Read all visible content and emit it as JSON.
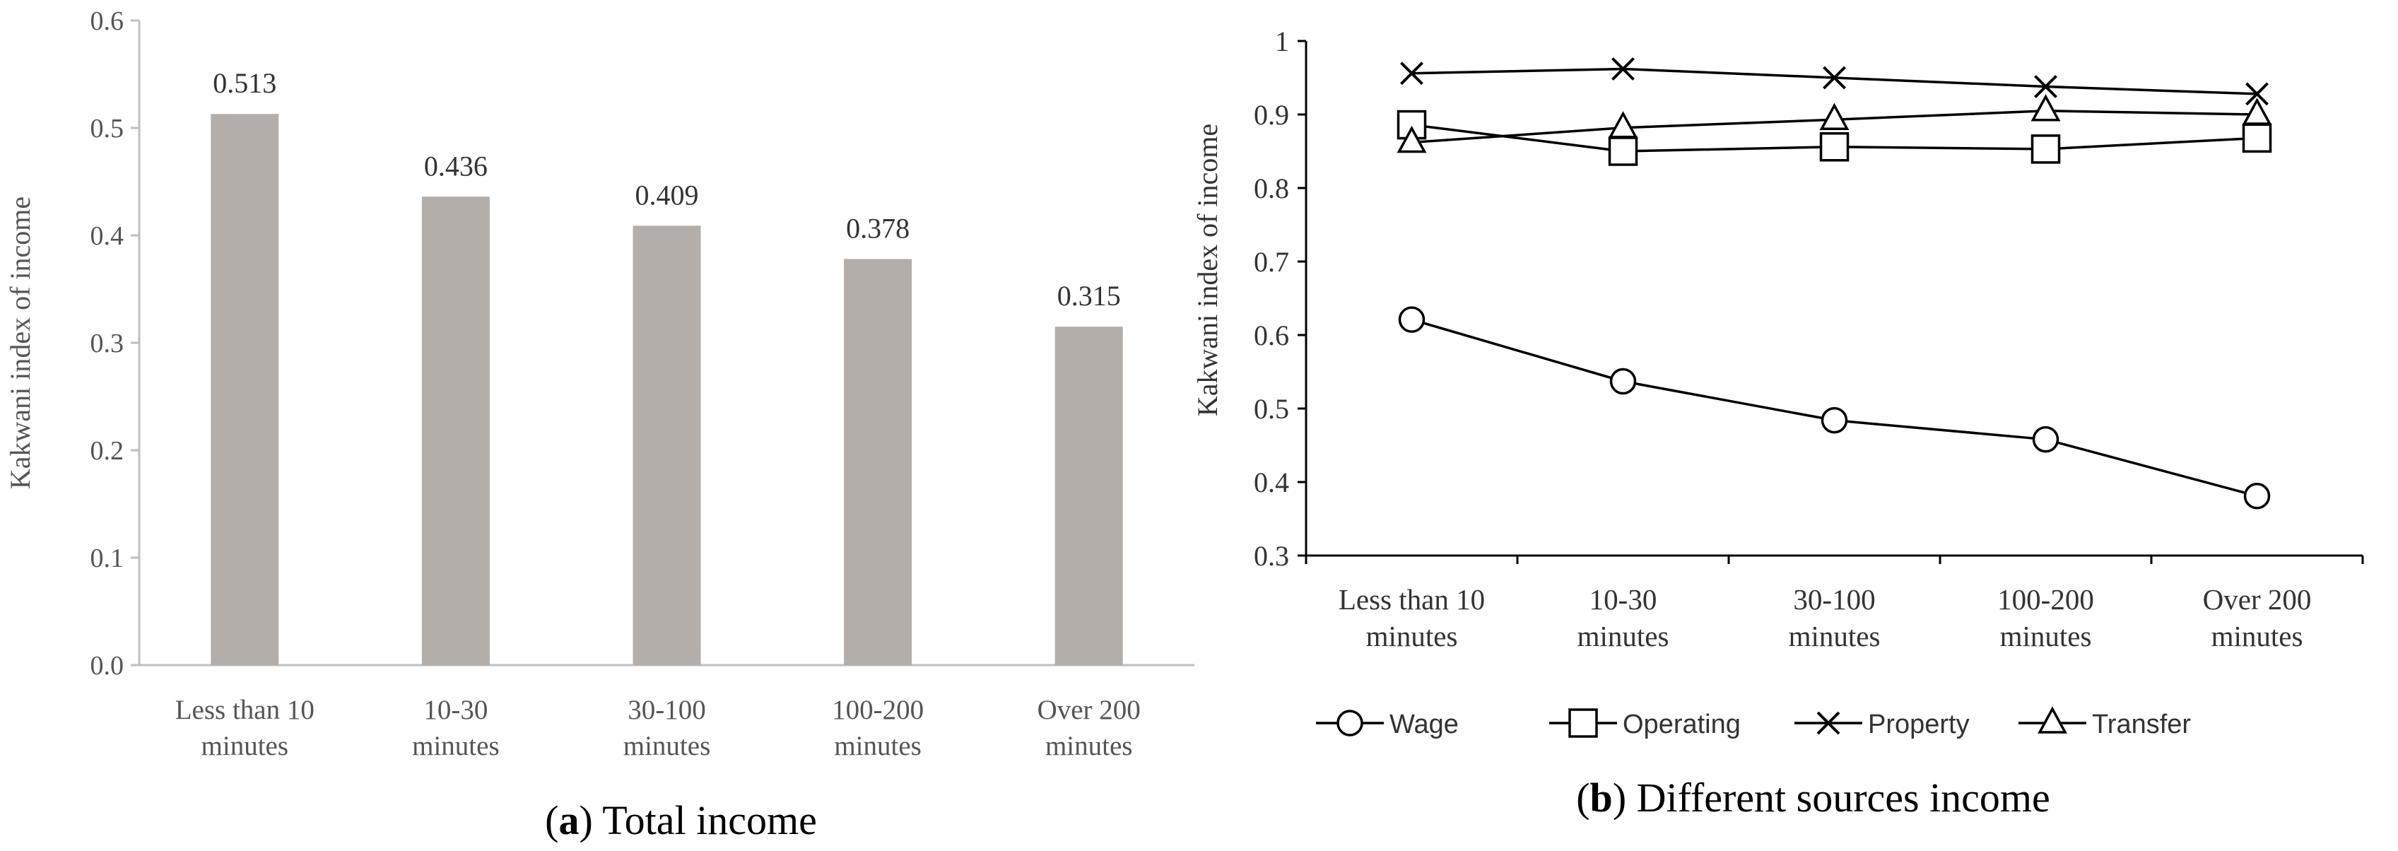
{
  "chart_data": [
    {
      "type": "bar",
      "caption_prefix": "(",
      "caption_letter": "a",
      "caption_suffix": ") Total income",
      "ylabel": "Kakwani index of income",
      "categories": [
        [
          "Less than 10",
          "minutes"
        ],
        [
          "10-30",
          "minutes"
        ],
        [
          "30-100",
          "minutes"
        ],
        [
          "100-200",
          "minutes"
        ],
        [
          "Over 200",
          "minutes"
        ]
      ],
      "values": [
        0.513,
        0.436,
        0.409,
        0.378,
        0.315
      ],
      "data_labels": [
        "0.513",
        "0.436",
        "0.409",
        "0.378",
        "0.315"
      ],
      "ylim": [
        0,
        0.6
      ],
      "yticks": [
        0,
        0.1,
        0.2,
        0.3,
        0.4,
        0.5,
        0.6
      ],
      "ytick_labels": [
        "0.0",
        "0.1",
        "0.2",
        "0.3",
        "0.4",
        "0.5",
        "0.6"
      ],
      "bar_color": "#b3aeaa",
      "grid": false
    },
    {
      "type": "line",
      "caption_prefix": "(",
      "caption_letter": "b",
      "caption_suffix": ") Different sources income",
      "ylabel": "Kakwani index of income",
      "categories": [
        [
          "Less than 10",
          "minutes"
        ],
        [
          "10-30",
          "minutes"
        ],
        [
          "30-100",
          "minutes"
        ],
        [
          "100-200",
          "minutes"
        ],
        [
          "Over 200",
          "minutes"
        ]
      ],
      "ylim": [
        0.3,
        1.0
      ],
      "yticks": [
        0.3,
        0.4,
        0.5,
        0.6,
        0.7,
        0.8,
        0.9,
        1.0
      ],
      "ytick_labels": [
        "0.3",
        "0.4",
        "0.5",
        "0.6",
        "0.7",
        "0.8",
        "0.9",
        "1"
      ],
      "grid": false,
      "legend_position": "bottom",
      "series": [
        {
          "name": "Wage",
          "marker": "circle",
          "values": [
            0.621,
            0.537,
            0.484,
            0.458,
            0.381
          ]
        },
        {
          "name": "Operating",
          "marker": "square",
          "values": [
            0.886,
            0.85,
            0.856,
            0.853,
            0.868
          ]
        },
        {
          "name": "Property",
          "marker": "x",
          "values": [
            0.956,
            0.962,
            0.95,
            0.938,
            0.928
          ]
        },
        {
          "name": "Transfer",
          "marker": "triangle",
          "values": [
            0.862,
            0.882,
            0.893,
            0.905,
            0.9
          ]
        }
      ],
      "line_color": "#000000"
    }
  ]
}
